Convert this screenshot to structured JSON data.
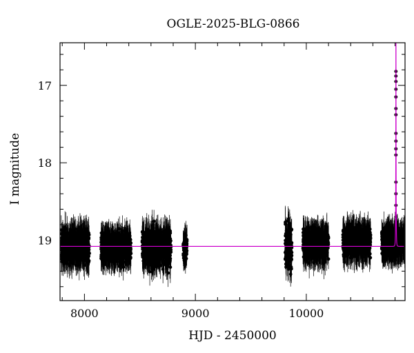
{
  "chart_data": {
    "type": "scatter",
    "title": "OGLE-2025-BLG-0866",
    "xlabel": "HJD - 2450000",
    "ylabel": "I magnitude",
    "xlim": [
      7780,
      10890
    ],
    "ylim": [
      19.78,
      16.45
    ],
    "y_inverted": true,
    "grid": false,
    "x_ticks": [
      8000,
      9000,
      10000
    ],
    "y_ticks": [
      17,
      18,
      19
    ],
    "x_minor_step": 200,
    "y_minor_step": 0.2,
    "colors": {
      "points": "#000000",
      "model": "#cc00cc",
      "frame": "#000000"
    },
    "baseline_mag": 19.08,
    "observing_seasons": [
      {
        "x_start": 7790,
        "x_end": 8045,
        "mean_mag": 19.08,
        "scatter_mag": 0.22
      },
      {
        "x_start": 8150,
        "x_end": 8420,
        "mean_mag": 19.1,
        "scatter_mag": 0.18
      },
      {
        "x_start": 8520,
        "x_end": 8780,
        "mean_mag": 19.1,
        "scatter_mag": 0.24
      },
      {
        "x_start": 8890,
        "x_end": 8925,
        "mean_mag": 19.1,
        "scatter_mag": 0.15
      },
      {
        "x_start": 9810,
        "x_end": 9870,
        "mean_mag": 19.08,
        "scatter_mag": 0.3
      },
      {
        "x_start": 9970,
        "x_end": 10200,
        "mean_mag": 19.05,
        "scatter_mag": 0.2
      },
      {
        "x_start": 10330,
        "x_end": 10580,
        "mean_mag": 19.02,
        "scatter_mag": 0.2
      },
      {
        "x_start": 10680,
        "x_end": 10890,
        "mean_mag": 19.03,
        "scatter_mag": 0.18
      }
    ],
    "peak_points": [
      {
        "x": 10808,
        "mag": 16.82
      },
      {
        "x": 10808,
        "mag": 16.88
      },
      {
        "x": 10808,
        "mag": 16.95
      },
      {
        "x": 10808,
        "mag": 17.05
      },
      {
        "x": 10808,
        "mag": 17.15
      },
      {
        "x": 10808,
        "mag": 17.3
      },
      {
        "x": 10808,
        "mag": 17.38
      },
      {
        "x": 10808,
        "mag": 17.62
      },
      {
        "x": 10808,
        "mag": 17.72
      },
      {
        "x": 10808,
        "mag": 17.82
      },
      {
        "x": 10808,
        "mag": 17.9
      },
      {
        "x": 10808,
        "mag": 18.25
      },
      {
        "x": 10808,
        "mag": 18.4
      },
      {
        "x": 10808,
        "mag": 18.55
      },
      {
        "x": 10808,
        "mag": 18.7
      }
    ],
    "model_curve": {
      "t0": 10808,
      "tE": 3.5,
      "u0": 0.0015,
      "baseline_mag": 19.08
    }
  }
}
